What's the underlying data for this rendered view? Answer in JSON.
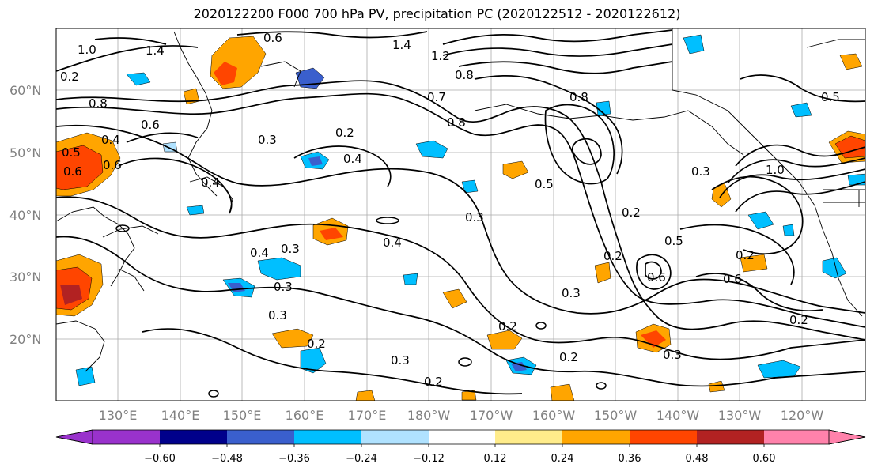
{
  "title": "2020122200 F000 700 hPa PV, precipitation PC (2020122512 - 2020122612)",
  "map": {
    "lat_labels": [
      "60°N",
      "50°N",
      "40°N",
      "30°N",
      "20°N"
    ],
    "lon_labels": [
      "130°E",
      "140°E",
      "150°E",
      "160°E",
      "170°E",
      "180°W",
      "170°W",
      "160°W",
      "150°W",
      "140°W",
      "130°W",
      "120°W"
    ],
    "contour_labels": [
      "0.6",
      "1.4",
      "1.2",
      "1.4",
      "0.8",
      "0.8",
      "1.0",
      "0.2",
      "0.8",
      "0.6",
      "0.7",
      "0.5",
      "0.4",
      "0.6",
      "0.8",
      "0.3",
      "0.2",
      "0.4",
      "0.5",
      "0.3",
      "0.2",
      "0.4",
      "0.3",
      "0.4",
      "0.3",
      "0.3",
      "0.2",
      "0.2",
      "0.3",
      "0.2",
      "0.2",
      "0.3",
      "0.3",
      "0.2",
      "0.5",
      "0.6",
      "0.2",
      "0.6",
      "0.2",
      "0.3",
      "0.5",
      "0.4",
      "0.6",
      "1.0"
    ]
  },
  "colorbar": {
    "ticks": [
      "−0.60",
      "−0.48",
      "−0.36",
      "−0.24",
      "−0.12",
      "0.12",
      "0.24",
      "0.36",
      "0.48",
      "0.60"
    ],
    "colors": [
      "#9932cc",
      "#00008b",
      "#3a5fcd",
      "#00bfff",
      "#b0e2ff",
      "#ffffff",
      "#ffec8b",
      "#ffa500",
      "#ff4500",
      "#b22222",
      "#ff82ab"
    ]
  },
  "shading_colors": {
    "neg_light": "#b0e2ff",
    "neg_mid": "#00bfff",
    "neg_strong": "#3a5fcd",
    "pos_light": "#ffec8b",
    "pos_mid": "#ffa500",
    "pos_strong": "#ff4500",
    "pos_vstrong": "#b22222"
  }
}
